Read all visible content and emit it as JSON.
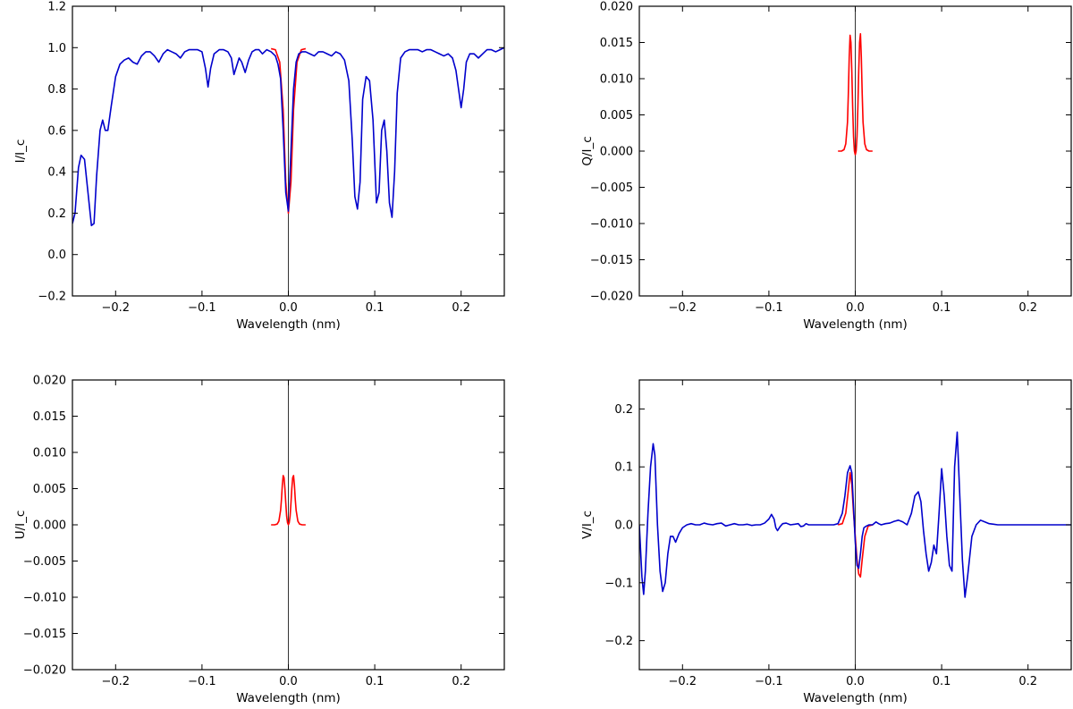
{
  "chart_data": [
    {
      "type": "line",
      "panel": "I",
      "xlabel": "Wavelength (nm)",
      "ylabel": "I/I_c",
      "xlim": [
        -0.25,
        0.25
      ],
      "ylim": [
        -0.2,
        1.2
      ],
      "xticks": [
        -0.2,
        -0.1,
        0.0,
        0.1,
        0.2
      ],
      "xtick_labels": [
        "−0.2",
        "−0.1",
        "0.0",
        "0.1",
        "0.2"
      ],
      "yticks": [
        -0.2,
        0.0,
        0.2,
        0.4,
        0.6,
        0.8,
        1.0,
        1.2
      ],
      "ytick_labels": [
        "−0.2",
        "0.0",
        "0.2",
        "0.4",
        "0.6",
        "0.8",
        "1.0",
        "1.2"
      ],
      "vline_x": 0,
      "series": [
        {
          "color": "#ff0000",
          "x": [
            -0.02,
            -0.015,
            -0.01,
            -0.006,
            -0.003,
            0.0,
            0.003,
            0.006,
            0.01,
            0.015,
            0.02
          ],
          "y": [
            0.995,
            0.99,
            0.93,
            0.7,
            0.35,
            0.2,
            0.35,
            0.7,
            0.93,
            0.99,
            0.995
          ]
        },
        {
          "color": "#0000cc",
          "x": [
            -0.25,
            -0.247,
            -0.243,
            -0.24,
            -0.236,
            -0.232,
            -0.228,
            -0.225,
            -0.222,
            -0.218,
            -0.215,
            -0.212,
            -0.209,
            -0.205,
            -0.2,
            -0.195,
            -0.19,
            -0.185,
            -0.18,
            -0.175,
            -0.17,
            -0.165,
            -0.16,
            -0.155,
            -0.15,
            -0.145,
            -0.14,
            -0.135,
            -0.13,
            -0.125,
            -0.12,
            -0.115,
            -0.11,
            -0.105,
            -0.1,
            -0.096,
            -0.093,
            -0.09,
            -0.086,
            -0.08,
            -0.075,
            -0.07,
            -0.066,
            -0.063,
            -0.06,
            -0.057,
            -0.054,
            -0.05,
            -0.046,
            -0.042,
            -0.038,
            -0.034,
            -0.03,
            -0.025,
            -0.02,
            -0.015,
            -0.012,
            -0.009,
            -0.006,
            -0.003,
            0.0,
            0.003,
            0.006,
            0.009,
            0.012,
            0.016,
            0.02,
            0.025,
            0.03,
            0.035,
            0.04,
            0.045,
            0.05,
            0.055,
            0.06,
            0.065,
            0.07,
            0.074,
            0.077,
            0.08,
            0.083,
            0.086,
            0.09,
            0.094,
            0.098,
            0.102,
            0.105,
            0.108,
            0.111,
            0.114,
            0.117,
            0.12,
            0.123,
            0.126,
            0.13,
            0.135,
            0.14,
            0.145,
            0.15,
            0.155,
            0.16,
            0.165,
            0.17,
            0.175,
            0.18,
            0.185,
            0.19,
            0.194,
            0.197,
            0.2,
            0.203,
            0.206,
            0.21,
            0.215,
            0.22,
            0.225,
            0.23,
            0.235,
            0.24,
            0.245,
            0.25
          ],
          "y": [
            0.15,
            0.2,
            0.42,
            0.48,
            0.46,
            0.3,
            0.14,
            0.15,
            0.38,
            0.6,
            0.65,
            0.6,
            0.6,
            0.72,
            0.86,
            0.92,
            0.94,
            0.95,
            0.93,
            0.92,
            0.96,
            0.98,
            0.98,
            0.96,
            0.93,
            0.97,
            0.99,
            0.98,
            0.97,
            0.95,
            0.98,
            0.99,
            0.99,
            0.99,
            0.98,
            0.9,
            0.81,
            0.9,
            0.97,
            0.99,
            0.99,
            0.98,
            0.95,
            0.87,
            0.91,
            0.95,
            0.93,
            0.88,
            0.94,
            0.98,
            0.99,
            0.99,
            0.97,
            0.99,
            0.98,
            0.96,
            0.92,
            0.85,
            0.6,
            0.3,
            0.21,
            0.5,
            0.8,
            0.93,
            0.97,
            0.98,
            0.98,
            0.97,
            0.96,
            0.98,
            0.98,
            0.97,
            0.96,
            0.98,
            0.97,
            0.94,
            0.84,
            0.55,
            0.28,
            0.22,
            0.35,
            0.75,
            0.86,
            0.84,
            0.65,
            0.25,
            0.3,
            0.6,
            0.65,
            0.5,
            0.25,
            0.18,
            0.4,
            0.78,
            0.95,
            0.98,
            0.99,
            0.99,
            0.99,
            0.98,
            0.99,
            0.99,
            0.98,
            0.97,
            0.96,
            0.97,
            0.95,
            0.89,
            0.8,
            0.71,
            0.8,
            0.93,
            0.97,
            0.97,
            0.95,
            0.97,
            0.99,
            0.99,
            0.98,
            0.99,
            1.0
          ]
        }
      ]
    },
    {
      "type": "line",
      "panel": "Q",
      "xlabel": "Wavelength (nm)",
      "ylabel": "Q/I_c",
      "xlim": [
        -0.25,
        0.25
      ],
      "ylim": [
        -0.02,
        0.02
      ],
      "xticks": [
        -0.2,
        -0.1,
        0.0,
        0.1,
        0.2
      ],
      "xtick_labels": [
        "−0.2",
        "−0.1",
        "0.0",
        "0.1",
        "0.2"
      ],
      "yticks": [
        -0.02,
        -0.015,
        -0.01,
        -0.005,
        0.0,
        0.005,
        0.01,
        0.015,
        0.02
      ],
      "ytick_labels": [
        "−0.020",
        "−0.015",
        "−0.010",
        "−0.005",
        "0.000",
        "0.005",
        "0.010",
        "0.015",
        "0.020"
      ],
      "vline_x": 0,
      "series": [
        {
          "color": "#ff0000",
          "x": [
            -0.02,
            -0.016,
            -0.013,
            -0.011,
            -0.009,
            -0.008,
            -0.007,
            -0.006,
            -0.005,
            -0.004,
            -0.003,
            -0.002,
            -0.001,
            0.0,
            0.001,
            0.002,
            0.003,
            0.004,
            0.005,
            0.006,
            0.007,
            0.008,
            0.009,
            0.011,
            0.013,
            0.016,
            0.02
          ],
          "y": [
            0.0,
            0.0,
            0.0002,
            0.001,
            0.004,
            0.008,
            0.013,
            0.016,
            0.015,
            0.011,
            0.006,
            0.002,
            0.0,
            -0.0005,
            0.0,
            0.002,
            0.006,
            0.011,
            0.015,
            0.0162,
            0.013,
            0.008,
            0.004,
            0.001,
            0.0002,
            0.0,
            0.0
          ]
        }
      ]
    },
    {
      "type": "line",
      "panel": "U",
      "xlabel": "Wavelength (nm)",
      "ylabel": "U/I_c",
      "xlim": [
        -0.25,
        0.25
      ],
      "ylim": [
        -0.02,
        0.02
      ],
      "xticks": [
        -0.2,
        -0.1,
        0.0,
        0.1,
        0.2
      ],
      "xtick_labels": [
        "−0.2",
        "−0.1",
        "0.0",
        "0.1",
        "0.2"
      ],
      "yticks": [
        -0.02,
        -0.015,
        -0.01,
        -0.005,
        0.0,
        0.005,
        0.01,
        0.015,
        0.02
      ],
      "ytick_labels": [
        "−0.020",
        "−0.015",
        "−0.010",
        "−0.005",
        "0.000",
        "0.005",
        "0.010",
        "0.015",
        "0.020"
      ],
      "vline_x": 0,
      "series": [
        {
          "color": "#ff0000",
          "x": [
            -0.02,
            -0.016,
            -0.013,
            -0.011,
            -0.009,
            -0.008,
            -0.007,
            -0.006,
            -0.005,
            -0.004,
            -0.003,
            -0.002,
            -0.001,
            0.0,
            0.001,
            0.002,
            0.003,
            0.004,
            0.005,
            0.006,
            0.007,
            0.008,
            0.009,
            0.011,
            0.013,
            0.016,
            0.02
          ],
          "y": [
            0.0,
            0.0,
            0.0001,
            0.0005,
            0.002,
            0.0035,
            0.0055,
            0.0068,
            0.0065,
            0.005,
            0.003,
            0.0012,
            0.0003,
            0.0,
            0.0003,
            0.0012,
            0.003,
            0.005,
            0.0065,
            0.0068,
            0.0055,
            0.0035,
            0.002,
            0.0005,
            0.0001,
            0.0,
            0.0
          ]
        }
      ]
    },
    {
      "type": "line",
      "panel": "V",
      "xlabel": "Wavelength (nm)",
      "ylabel": "V/I_c",
      "xlim": [
        -0.25,
        0.25
      ],
      "ylim": [
        -0.25,
        0.25
      ],
      "xticks": [
        -0.2,
        -0.1,
        0.0,
        0.1,
        0.2
      ],
      "xtick_labels": [
        "−0.2",
        "−0.1",
        "0.0",
        "0.1",
        "0.2"
      ],
      "yticks": [
        -0.2,
        -0.1,
        0.0,
        0.1,
        0.2
      ],
      "ytick_labels": [
        "−0.2",
        "−0.1",
        "0.0",
        "0.1",
        "0.2"
      ],
      "vline_x": 0,
      "series": [
        {
          "color": "#ff0000",
          "x": [
            -0.02,
            -0.015,
            -0.011,
            -0.008,
            -0.006,
            -0.004,
            -0.002,
            0.0,
            0.002,
            0.004,
            0.006,
            0.008,
            0.011,
            0.015,
            0.02
          ],
          "y": [
            0.0,
            0.002,
            0.02,
            0.06,
            0.09,
            0.07,
            0.02,
            -0.02,
            -0.06,
            -0.085,
            -0.09,
            -0.06,
            -0.02,
            -0.002,
            0.0
          ]
        },
        {
          "color": "#0000cc",
          "x": [
            -0.25,
            -0.247,
            -0.245,
            -0.243,
            -0.24,
            -0.237,
            -0.234,
            -0.232,
            -0.229,
            -0.226,
            -0.223,
            -0.22,
            -0.217,
            -0.214,
            -0.211,
            -0.208,
            -0.204,
            -0.2,
            -0.195,
            -0.19,
            -0.185,
            -0.18,
            -0.175,
            -0.17,
            -0.165,
            -0.16,
            -0.155,
            -0.15,
            -0.145,
            -0.14,
            -0.135,
            -0.13,
            -0.125,
            -0.12,
            -0.115,
            -0.11,
            -0.105,
            -0.1,
            -0.097,
            -0.094,
            -0.092,
            -0.09,
            -0.087,
            -0.084,
            -0.08,
            -0.075,
            -0.07,
            -0.066,
            -0.063,
            -0.06,
            -0.057,
            -0.054,
            -0.05,
            -0.045,
            -0.04,
            -0.035,
            -0.03,
            -0.025,
            -0.02,
            -0.015,
            -0.012,
            -0.009,
            -0.006,
            -0.004,
            -0.002,
            0.0,
            0.002,
            0.004,
            0.006,
            0.008,
            0.01,
            0.013,
            0.016,
            0.02,
            0.024,
            0.027,
            0.03,
            0.035,
            0.04,
            0.045,
            0.05,
            0.055,
            0.06,
            0.065,
            0.069,
            0.073,
            0.076,
            0.079,
            0.082,
            0.085,
            0.088,
            0.091,
            0.094,
            0.097,
            0.1,
            0.103,
            0.106,
            0.109,
            0.112,
            0.115,
            0.118,
            0.121,
            0.124,
            0.127,
            0.13,
            0.135,
            0.14,
            0.145,
            0.15,
            0.155,
            0.16,
            0.165,
            0.17,
            0.175,
            0.18,
            0.185,
            0.19,
            0.195,
            0.2,
            0.205,
            0.21,
            0.215,
            0.22,
            0.225,
            0.23,
            0.235,
            0.24,
            0.245,
            0.25
          ],
          "y": [
            0.0,
            -0.09,
            -0.12,
            -0.08,
            0.02,
            0.1,
            0.14,
            0.12,
            0.0,
            -0.08,
            -0.115,
            -0.1,
            -0.05,
            -0.02,
            -0.02,
            -0.03,
            -0.015,
            -0.005,
            0.0,
            0.002,
            0.0,
            0.0,
            0.003,
            0.001,
            0.0,
            0.002,
            0.003,
            -0.002,
            0.0,
            0.002,
            0.0,
            0.0,
            0.001,
            -0.001,
            0.0,
            0.0,
            0.003,
            0.01,
            0.018,
            0.01,
            -0.005,
            -0.01,
            -0.003,
            0.002,
            0.003,
            0.0,
            0.001,
            0.002,
            -0.003,
            -0.002,
            0.002,
            0.0,
            0.0,
            0.0,
            0.0,
            0.0,
            0.0,
            0.0,
            0.002,
            0.02,
            0.05,
            0.09,
            0.102,
            0.09,
            0.03,
            -0.03,
            -0.07,
            -0.075,
            -0.05,
            -0.02,
            -0.005,
            -0.002,
            0.0,
            0.0,
            0.005,
            0.002,
            0.0,
            0.002,
            0.003,
            0.006,
            0.008,
            0.005,
            0.0,
            0.02,
            0.05,
            0.057,
            0.04,
            -0.01,
            -0.05,
            -0.08,
            -0.065,
            -0.035,
            -0.05,
            0.02,
            0.097,
            0.05,
            -0.02,
            -0.07,
            -0.08,
            0.1,
            0.16,
            0.05,
            -0.06,
            -0.125,
            -0.09,
            -0.02,
            0.0,
            0.008,
            0.005,
            0.002,
            0.001,
            0.0,
            0.0,
            0.0,
            0.0,
            0.0,
            0.0,
            0.0,
            0.0,
            0.0,
            0.0,
            0.0,
            0.0,
            0.0,
            0.0,
            0.0,
            0.0,
            0.0,
            0.0
          ]
        }
      ]
    }
  ]
}
